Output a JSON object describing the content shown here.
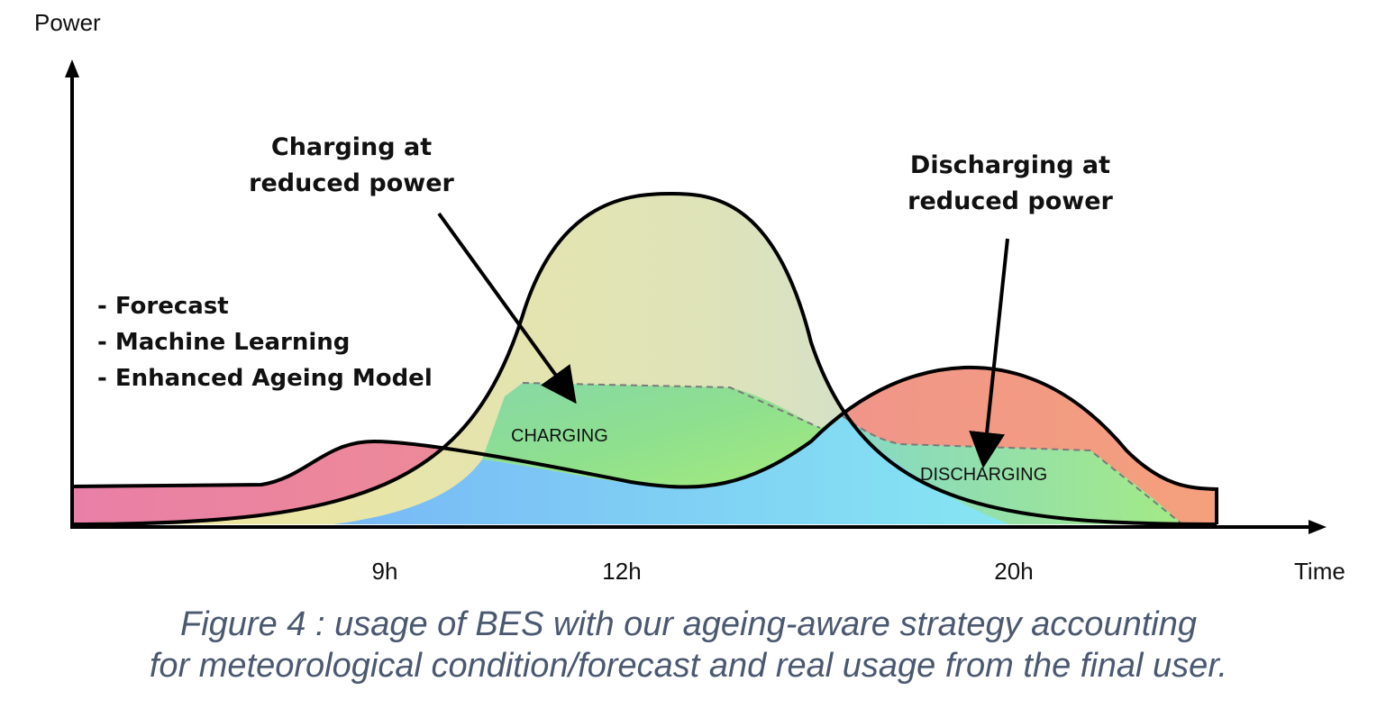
{
  "axes": {
    "y_label": "Power",
    "x_label": "Time",
    "ticks": [
      "9h",
      "12h",
      "20h"
    ]
  },
  "annotations": {
    "charging_reduced": [
      "Charging at",
      "reduced power"
    ],
    "discharging_reduced": [
      "Discharging at",
      "reduced power"
    ],
    "charging_zone": "CHARGING",
    "discharging_zone": "DISCHARGING"
  },
  "method_list": [
    "- Forecast",
    "- Machine Learning",
    "- Enhanced Ageing Model"
  ],
  "caption": [
    "Figure 4 : usage of BES with our ageing-aware strategy accounting",
    "for meteorological condition/forecast and real usage from the final user."
  ],
  "colors": {
    "consumption_left": "#e97fa6",
    "consumption_right": "#f4a07c",
    "production_top_left": "#f0e79a",
    "production_top_right": "#bcd9e8",
    "charging_green": "#9be87c",
    "charging_blue": "#7cc4f6",
    "discharging_cyan": "#84e4f0",
    "caption": "#4a5870"
  }
}
